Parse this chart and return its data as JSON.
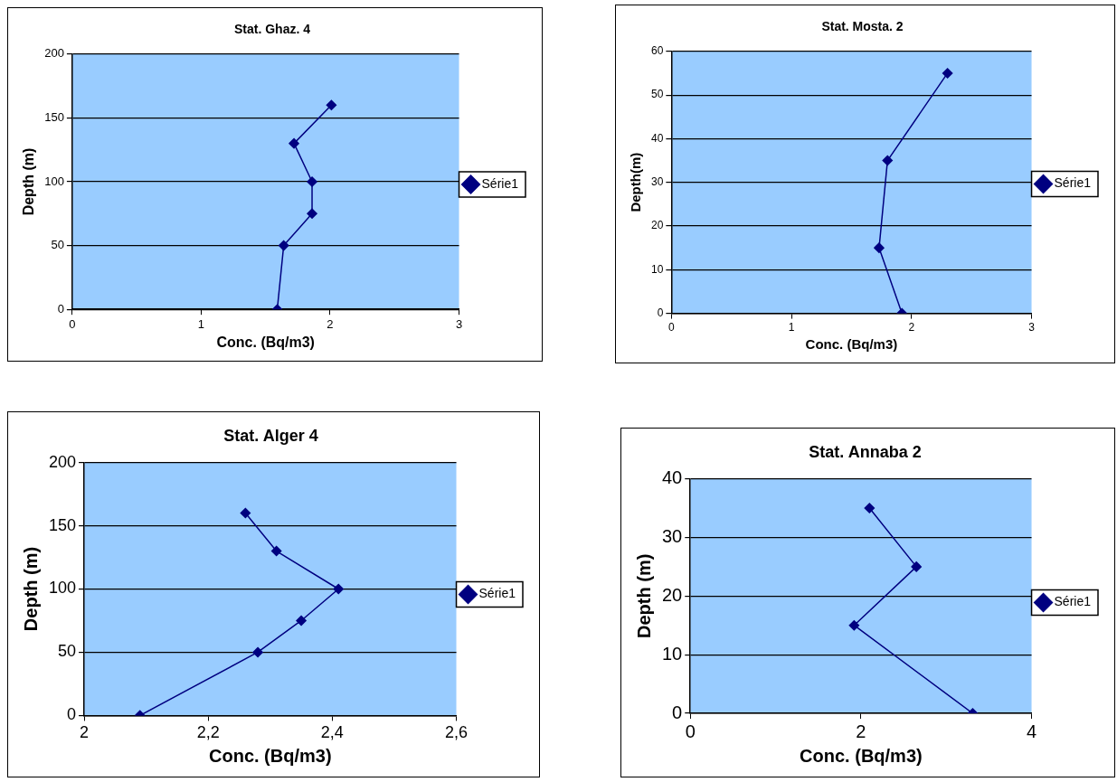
{
  "chart_data": [
    {
      "type": "line",
      "title": "Stat. Ghaz. 4",
      "xlabel": "Conc. (Bq/m3)",
      "ylabel": "Depth (m)",
      "xlim": [
        0,
        3
      ],
      "xticks": [
        0,
        1,
        2,
        3
      ],
      "ylim": [
        0,
        200
      ],
      "yticks": [
        0,
        50,
        100,
        150,
        200
      ],
      "grid": "y",
      "legend": "right",
      "marker": "diamond",
      "series": [
        {
          "name": "Série1",
          "color": "#000080",
          "x": [
            1.59,
            1.64,
            1.86,
            1.86,
            1.72,
            2.01
          ],
          "values": [
            0,
            50,
            75,
            100,
            130,
            160
          ]
        }
      ]
    },
    {
      "type": "line",
      "title": "Stat. Mosta. 2",
      "xlabel": "Conc. (Bq/m3)",
      "ylabel": "Depth(m)",
      "xlim": [
        0,
        3
      ],
      "xticks": [
        0,
        1,
        2,
        3
      ],
      "ylim": [
        0,
        60
      ],
      "yticks": [
        0,
        10,
        20,
        30,
        40,
        50,
        60
      ],
      "grid": "y",
      "legend": "right",
      "marker": "diamond",
      "series": [
        {
          "name": "Série1",
          "color": "#000080",
          "x": [
            1.92,
            1.73,
            1.8,
            2.3
          ],
          "values": [
            0,
            15,
            35,
            55
          ]
        }
      ]
    },
    {
      "type": "line",
      "title": "Stat. Alger 4",
      "xlabel": "Conc. (Bq/m3)",
      "ylabel": "Depth (m)",
      "xlim": [
        2,
        2.6
      ],
      "xticks": [
        2,
        {
          "value": 2.2,
          "label": "2,2"
        },
        {
          "value": 2.4,
          "label": "2,4"
        },
        {
          "value": 2.6,
          "label": "2,6"
        }
      ],
      "ylim": [
        0,
        200
      ],
      "yticks": [
        0,
        50,
        100,
        150,
        200
      ],
      "grid": "y",
      "legend": "right",
      "marker": "diamond",
      "series": [
        {
          "name": "Série1",
          "color": "#000080",
          "x": [
            2.09,
            2.28,
            2.35,
            2.41,
            2.31,
            2.26
          ],
          "values": [
            0,
            50,
            75,
            100,
            130,
            160
          ]
        }
      ]
    },
    {
      "type": "line",
      "title": "Stat. Annaba 2",
      "xlabel": "Conc. (Bq/m3)",
      "ylabel": "Depth (m)",
      "xlim": [
        0,
        4
      ],
      "xticks": [
        0,
        2,
        4
      ],
      "ylim": [
        0,
        40
      ],
      "yticks": [
        0,
        10,
        20,
        30,
        40
      ],
      "grid": "y",
      "legend": "right",
      "marker": "diamond",
      "series": [
        {
          "name": "Série1",
          "color": "#000080",
          "x": [
            3.31,
            1.92,
            2.65,
            2.1
          ],
          "values": [
            0,
            15,
            25,
            35
          ]
        }
      ]
    }
  ]
}
